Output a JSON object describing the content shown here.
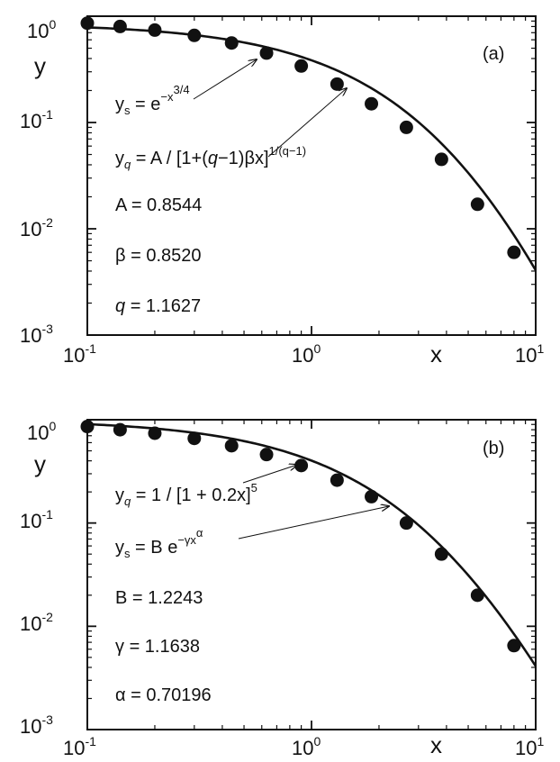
{
  "chart_data": [
    {
      "type": "line",
      "panel_label": "(a)",
      "xlabel": "x",
      "ylabel": "y",
      "xscale": "log",
      "yscale": "log",
      "xlim": [
        0.1,
        10
      ],
      "ylim": [
        0.001,
        1
      ],
      "x_ticks": [
        {
          "base": "10",
          "exp": "-1"
        },
        {
          "base": "10",
          "exp": "0"
        },
        {
          "base": "10",
          "exp": "1"
        }
      ],
      "y_ticks": [
        {
          "base": "10",
          "exp": "0"
        },
        {
          "base": "10",
          "exp": "-1"
        },
        {
          "base": "10",
          "exp": "-2"
        },
        {
          "base": "10",
          "exp": "-3"
        }
      ],
      "series": [
        {
          "marker": "filled-circle",
          "x": [
            0.1,
            0.14,
            0.2,
            0.3,
            0.44,
            0.63,
            0.9,
            1.3,
            1.85,
            2.65,
            3.8,
            5.5,
            8.0
          ],
          "y": [
            0.86,
            0.8,
            0.74,
            0.66,
            0.56,
            0.45,
            0.34,
            0.23,
            0.15,
            0.09,
            0.045,
            0.017,
            0.006
          ]
        },
        {
          "line": "solid",
          "equation": "y_q = A/[1+(q-1)βx]^(1/(q-1))",
          "params": {
            "A": 0.8544,
            "beta": 0.852,
            "q": 1.1627
          },
          "x_range": [
            0.1,
            10
          ]
        }
      ],
      "annotations": {
        "eq1": {
          "lhs": "y",
          "sub": "s",
          "mid": " = e",
          "sup": "−x",
          "sup2": "3/4"
        },
        "eq2": {
          "lhs": "y",
          "sub": "q",
          "mid": " = A / [1+(",
          "q": "q",
          "mid2": "−1)βx]",
          "sup": "1/(q−1)"
        },
        "p1": {
          "name": "A",
          "value": "= 0.8544"
        },
        "p2": {
          "name": "β",
          "value": "= 0.8520"
        },
        "p3": {
          "name": "q",
          "value": "= 1.1627"
        }
      }
    },
    {
      "type": "line",
      "panel_label": "(b)",
      "xlabel": "x",
      "ylabel": "y",
      "xscale": "log",
      "yscale": "log",
      "xlim": [
        0.1,
        10
      ],
      "ylim": [
        0.001,
        1
      ],
      "x_ticks": [
        {
          "base": "10",
          "exp": "-1"
        },
        {
          "base": "10",
          "exp": "0"
        },
        {
          "base": "10",
          "exp": "1"
        }
      ],
      "y_ticks": [
        {
          "base": "10",
          "exp": "0"
        },
        {
          "base": "10",
          "exp": "-1"
        },
        {
          "base": "10",
          "exp": "-2"
        },
        {
          "base": "10",
          "exp": "-3"
        }
      ],
      "series": [
        {
          "marker": "filled-circle",
          "x": [
            0.1,
            0.14,
            0.2,
            0.3,
            0.44,
            0.63,
            0.9,
            1.3,
            1.85,
            2.65,
            3.8,
            5.5,
            8.0
          ],
          "y": [
            0.86,
            0.8,
            0.74,
            0.66,
            0.56,
            0.46,
            0.36,
            0.26,
            0.18,
            0.1,
            0.05,
            0.02,
            0.0065
          ]
        },
        {
          "line": "solid",
          "equation": "y_q = 1/[1+0.2x]^5",
          "x_range": [
            0.1,
            10
          ]
        }
      ],
      "annotations": {
        "eq1": {
          "lhs": "y",
          "sub": "q",
          "mid": " = 1 / [1 + 0.2x]",
          "sup": "5"
        },
        "eq2": {
          "lhs": "y",
          "sub": "s",
          "mid": " = B e",
          "sup": "−γx",
          "sup2": "α"
        },
        "p1": {
          "name": "B",
          "value": "= 1.2243"
        },
        "p2": {
          "name": "γ",
          "value": "= 1.1638"
        },
        "p3": {
          "name": "α",
          "value": "= 0.70196"
        }
      }
    }
  ]
}
